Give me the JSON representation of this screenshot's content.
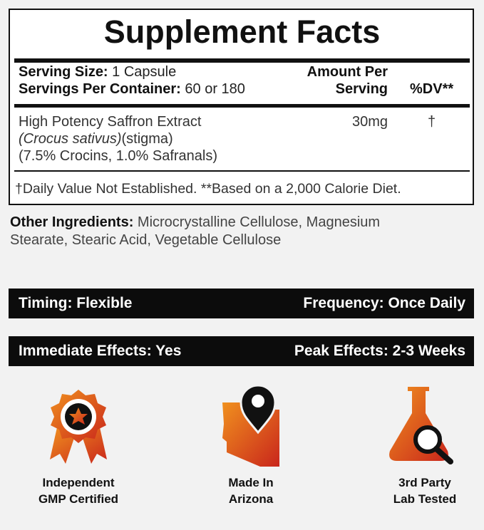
{
  "facts": {
    "title": "Supplement Facts",
    "serving_size_label": "Serving Size:",
    "serving_size": "1 Capsule",
    "servings_label": "Servings Per Container:",
    "servings": "60 or 180",
    "amount_header": [
      "Amount Per",
      "Serving"
    ],
    "dv_header": "%DV**",
    "ingredient": {
      "name": "High Potency Saffron Extract",
      "latin": "(Crocus sativus)",
      "part": "(stigma)",
      "standardization": "(7.5% Crocins, 1.0% Safranals)",
      "amount": "30mg",
      "dv": "†"
    },
    "footnote": "†Daily Value Not Established. **Based on a 2,000 Calorie Diet."
  },
  "other_ingredients": {
    "label": "Other Ingredients:",
    "line1": "Microcrystalline Cellulose, Magnesium",
    "line2": "Stearate, Stearic Acid, Vegetable Cellulose"
  },
  "bars": [
    {
      "left": "Timing: Flexible",
      "right": "Frequency: Once Daily"
    },
    {
      "left": "Immediate Effects: Yes",
      "right": "Peak Effects: 2-3 Weeks"
    }
  ],
  "badges": [
    [
      "Independent",
      "GMP Certified"
    ],
    [
      "Made In",
      "Arizona"
    ],
    [
      "3rd Party",
      "Lab Tested"
    ]
  ]
}
